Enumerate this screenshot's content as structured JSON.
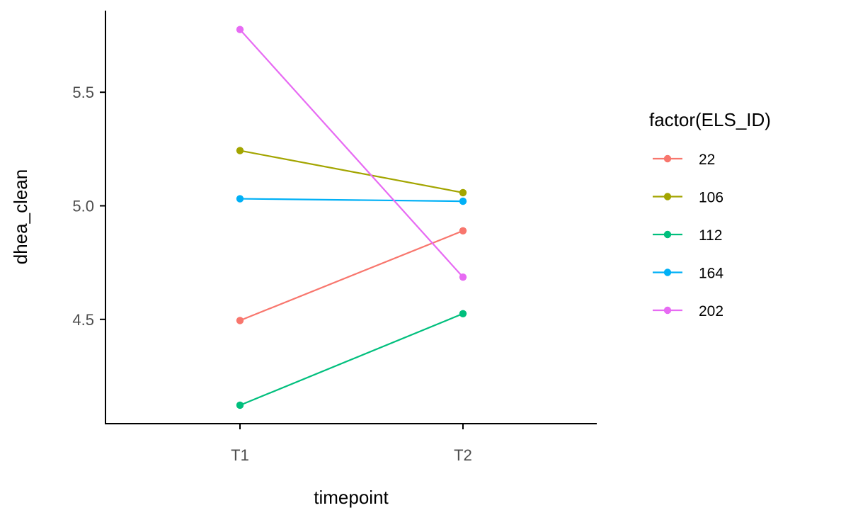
{
  "chart_data": {
    "type": "line",
    "xlabel": "timepoint",
    "ylabel": "dhea_clean",
    "categories": [
      "T1",
      "T2"
    ],
    "ylim": [
      4.04,
      5.85
    ],
    "yticks": [
      4.5,
      5.0,
      5.5
    ],
    "ytick_labels": [
      "4.5",
      "5.0",
      "5.5"
    ],
    "grid": false,
    "legend": {
      "title": "factor(ELS_ID)",
      "position": "right"
    },
    "series": [
      {
        "name": "22",
        "color": "#F8766D",
        "values": [
          4.495,
          4.89
        ]
      },
      {
        "name": "106",
        "color": "#A3A500",
        "values": [
          5.243,
          5.058
        ]
      },
      {
        "name": "112",
        "color": "#00BF7D",
        "values": [
          4.122,
          4.525
        ]
      },
      {
        "name": "164",
        "color": "#00B0F6",
        "values": [
          5.031,
          5.02
        ]
      },
      {
        "name": "202",
        "color": "#E76BF3",
        "values": [
          5.776,
          4.686
        ]
      }
    ]
  }
}
